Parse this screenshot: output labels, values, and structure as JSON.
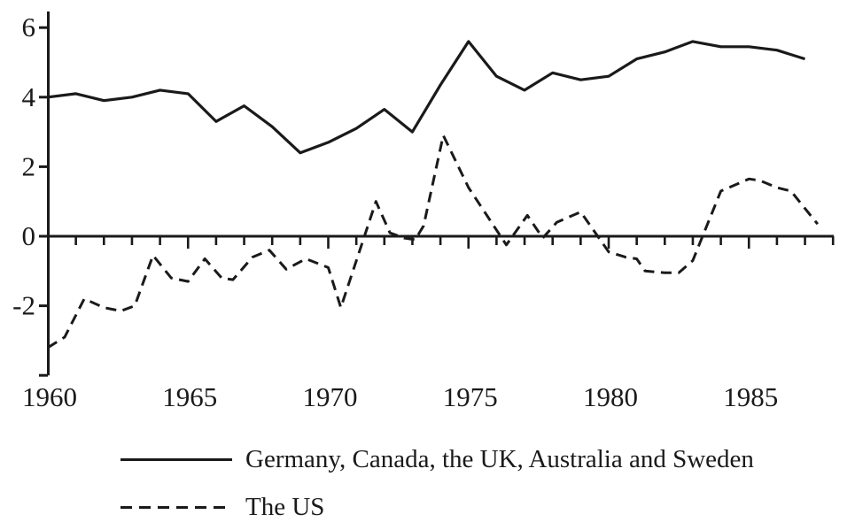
{
  "figure": {
    "background": "#ffffff",
    "ink_color": "#1a1a1a"
  },
  "chart_data": {
    "type": "line",
    "title": "",
    "xlabel": "",
    "ylabel": "",
    "xlim": [
      1960,
      1988
    ],
    "ylim": [
      -4,
      6.5
    ],
    "grid": false,
    "legend_position": "below-left",
    "x_axis": {
      "label_years": [
        1960,
        1965,
        1970,
        1975,
        1980,
        1985
      ],
      "minor_tick_start": 1961,
      "minor_tick_end": 1988
    },
    "y_axis": {
      "ticks": [
        6,
        4,
        2,
        0,
        -2,
        -4
      ],
      "tick_labels": [
        "6",
        "4",
        "2",
        "0",
        "-2",
        ""
      ]
    },
    "series": [
      {
        "name": "Germany, Canada, the UK, Australia and Sweden",
        "line_style": "solid",
        "x": [
          1960,
          1961,
          1962,
          1963,
          1964,
          1965,
          1966,
          1967,
          1968,
          1969,
          1970,
          1971,
          1972,
          1973,
          1974,
          1975,
          1976,
          1977,
          1978,
          1979,
          1980,
          1981,
          1982,
          1983,
          1984,
          1985,
          1986,
          1987
        ],
        "y": [
          4.0,
          4.1,
          3.9,
          4.0,
          4.2,
          4.1,
          3.3,
          3.75,
          3.15,
          2.4,
          2.7,
          3.1,
          3.65,
          3.0,
          4.35,
          5.6,
          4.6,
          4.2,
          4.7,
          4.5,
          4.6,
          5.1,
          5.3,
          5.6,
          5.45,
          5.45,
          5.35,
          5.1
        ]
      },
      {
        "name": "The US",
        "line_style": "dashed",
        "x": [
          1960.0,
          1960.6,
          1961.3,
          1962.0,
          1962.6,
          1963.1,
          1963.75,
          1964.4,
          1965.0,
          1965.6,
          1966.2,
          1966.6,
          1967.3,
          1967.9,
          1968.5,
          1969.2,
          1970.0,
          1970.45,
          1971.7,
          1972.2,
          1972.7,
          1973.1,
          1973.4,
          1974.1,
          1975.0,
          1976.35,
          1977.1,
          1977.65,
          1978.15,
          1979.0,
          1980.0,
          1980.6,
          1981.0,
          1981.3,
          1982.0,
          1982.5,
          1983.0,
          1984.0,
          1985.0,
          1985.4,
          1986.0,
          1986.5,
          1987.0,
          1987.45
        ],
        "y": [
          -3.2,
          -2.9,
          -1.8,
          -2.05,
          -2.15,
          -2.0,
          -0.55,
          -1.2,
          -1.3,
          -0.65,
          -1.2,
          -1.25,
          -0.6,
          -0.4,
          -0.95,
          -0.65,
          -0.9,
          -2.05,
          1.0,
          0.1,
          -0.05,
          -0.1,
          0.3,
          2.9,
          1.4,
          -0.25,
          0.6,
          -0.05,
          0.4,
          0.7,
          -0.45,
          -0.6,
          -0.65,
          -1.0,
          -1.05,
          -1.05,
          -0.7,
          1.3,
          1.65,
          1.6,
          1.4,
          1.3,
          0.8,
          0.35
        ]
      }
    ]
  },
  "legend": {
    "items": [
      {
        "label": "Germany, Canada, the UK, Australia and Sweden",
        "style": "solid"
      },
      {
        "label": "The US",
        "style": "dashed"
      }
    ]
  }
}
